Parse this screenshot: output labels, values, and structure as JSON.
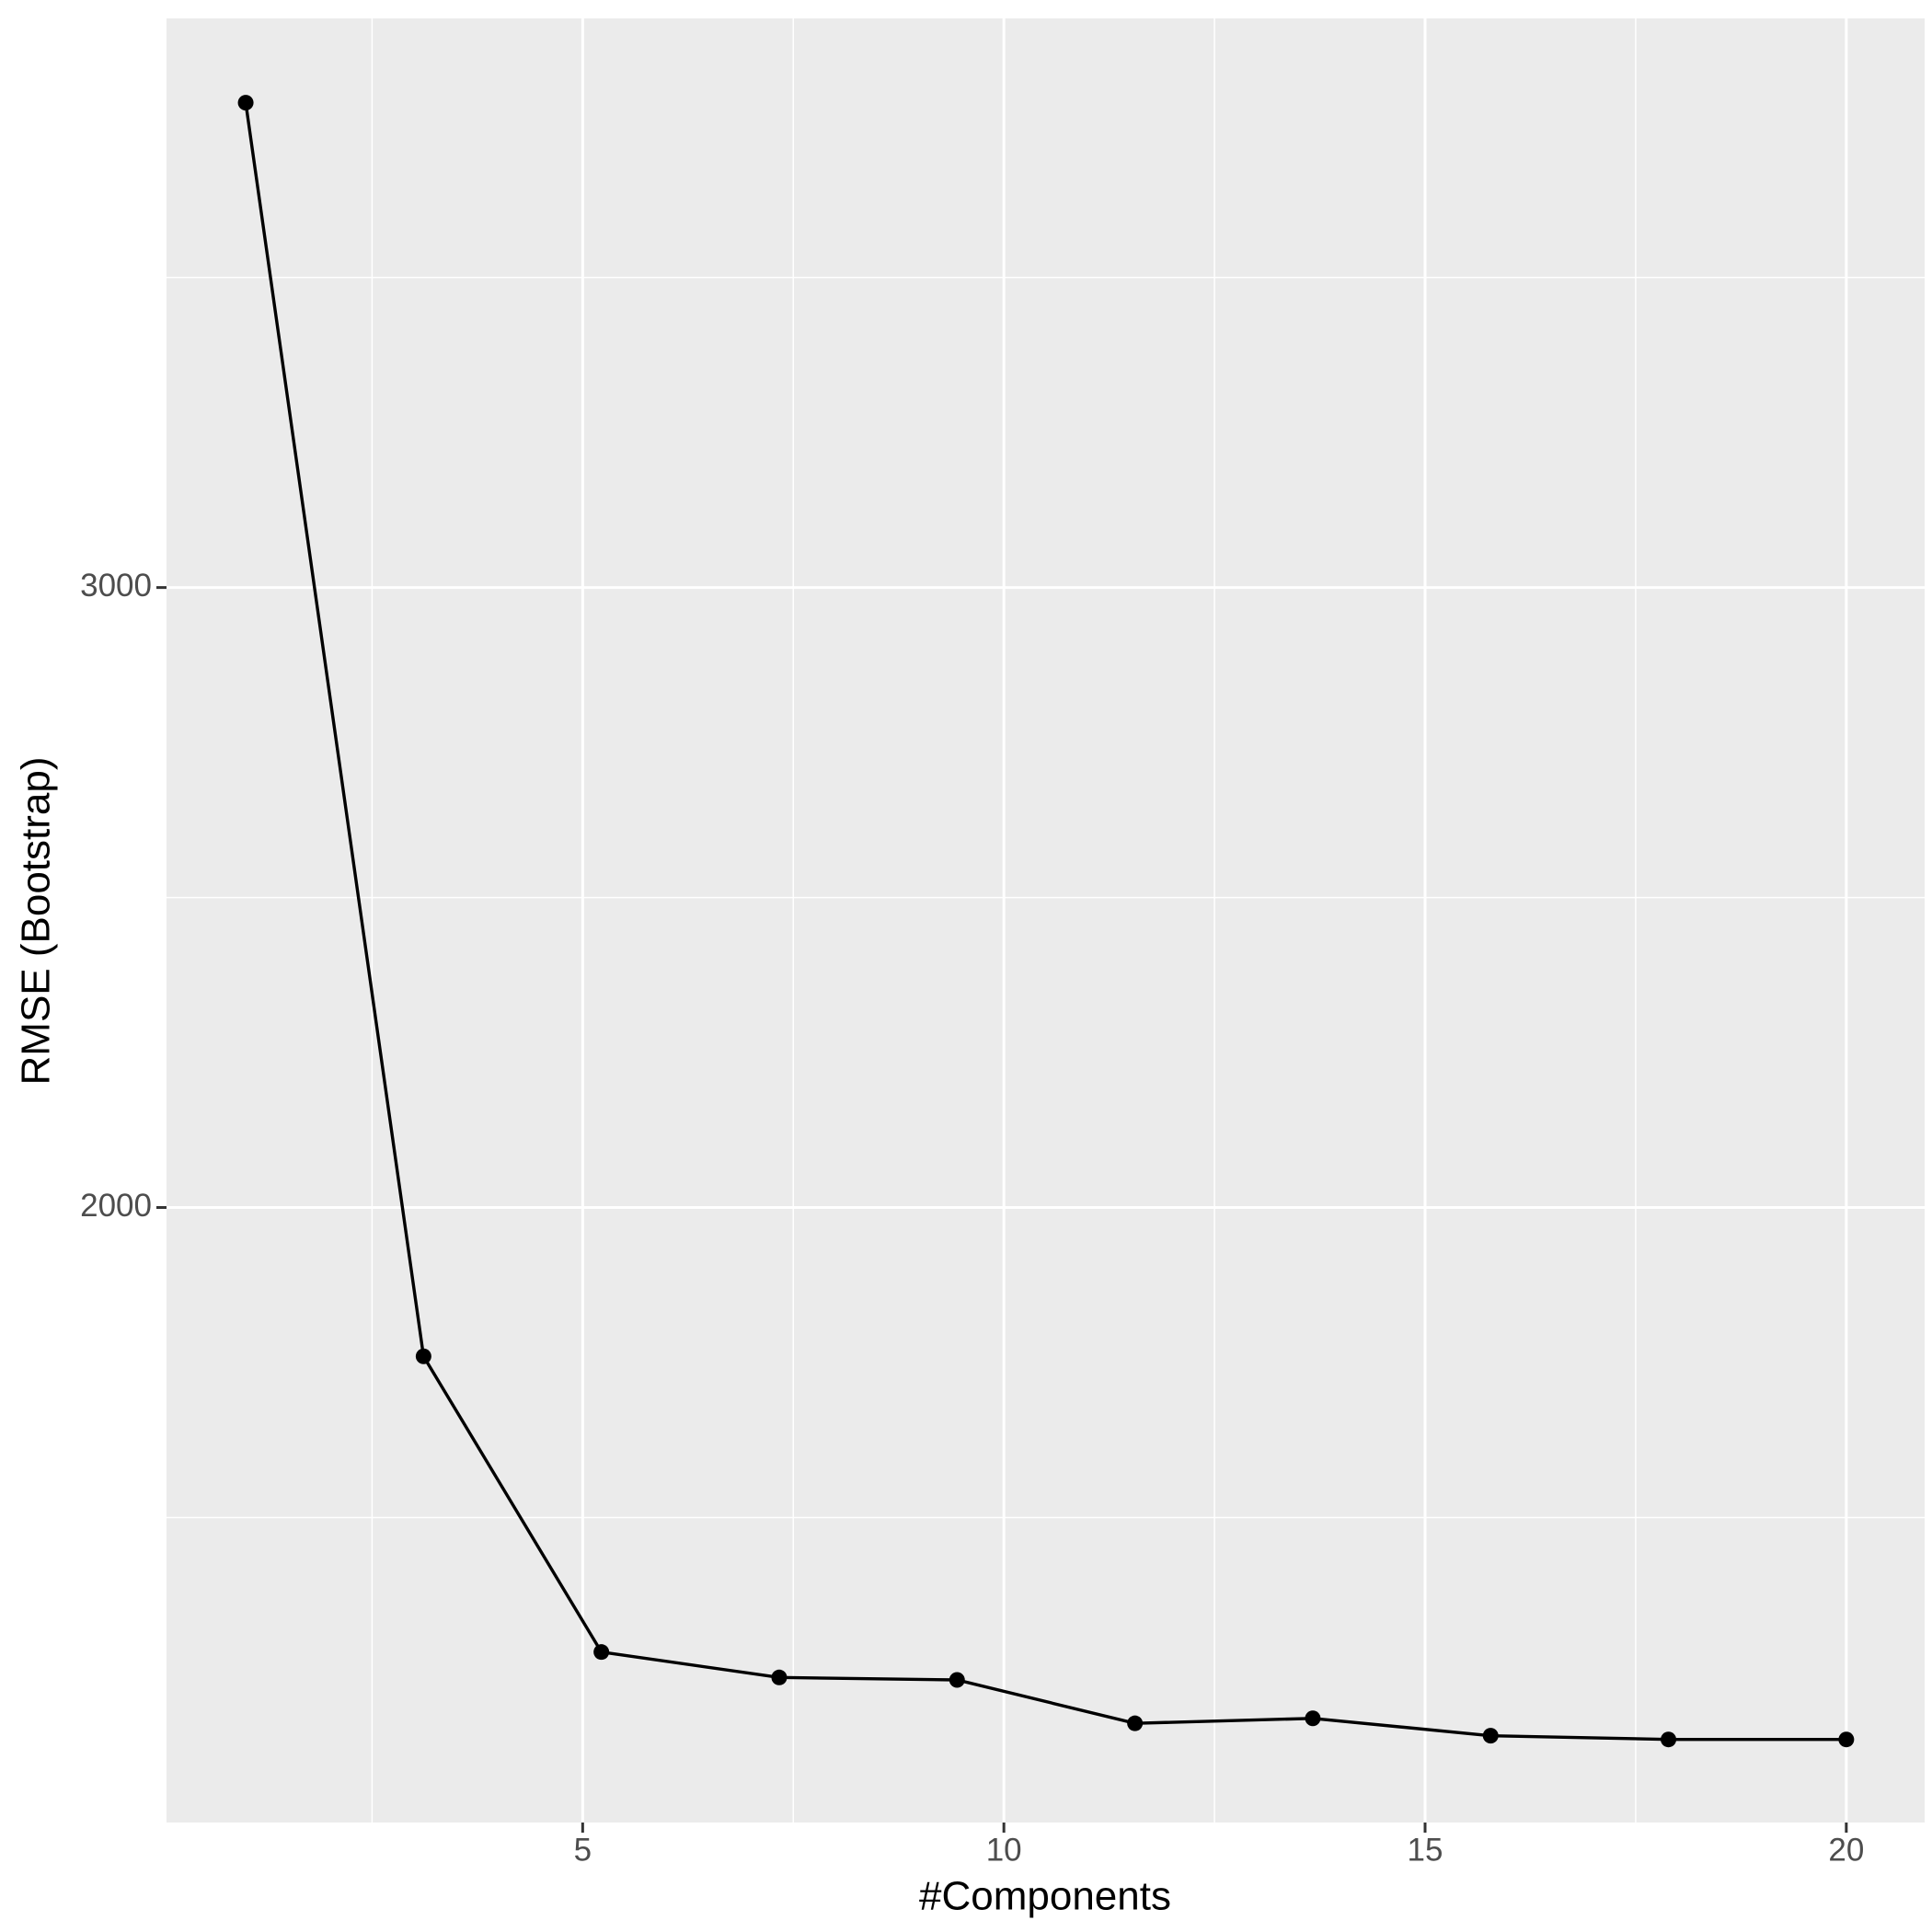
{
  "chart_data": {
    "type": "line",
    "x_label": "#Components",
    "y_label": "RMSE (Bootstrap)",
    "x": [
      1,
      3.111,
      5.222,
      7.333,
      9.444,
      11.556,
      13.667,
      15.778,
      17.889,
      20
    ],
    "series": [
      {
        "color": "#000000",
        "values": [
          3782,
          1760,
          1283,
          1242,
          1238,
          1168,
          1176,
          1148,
          1142,
          1142
        ]
      }
    ],
    "xlim": [
      0.06,
      20.93
    ],
    "xticks": [
      5,
      10,
      15,
      20
    ],
    "ylim": [
      1008,
      3918
    ],
    "yticks": [
      2000,
      3000
    ],
    "grid": true
  }
}
